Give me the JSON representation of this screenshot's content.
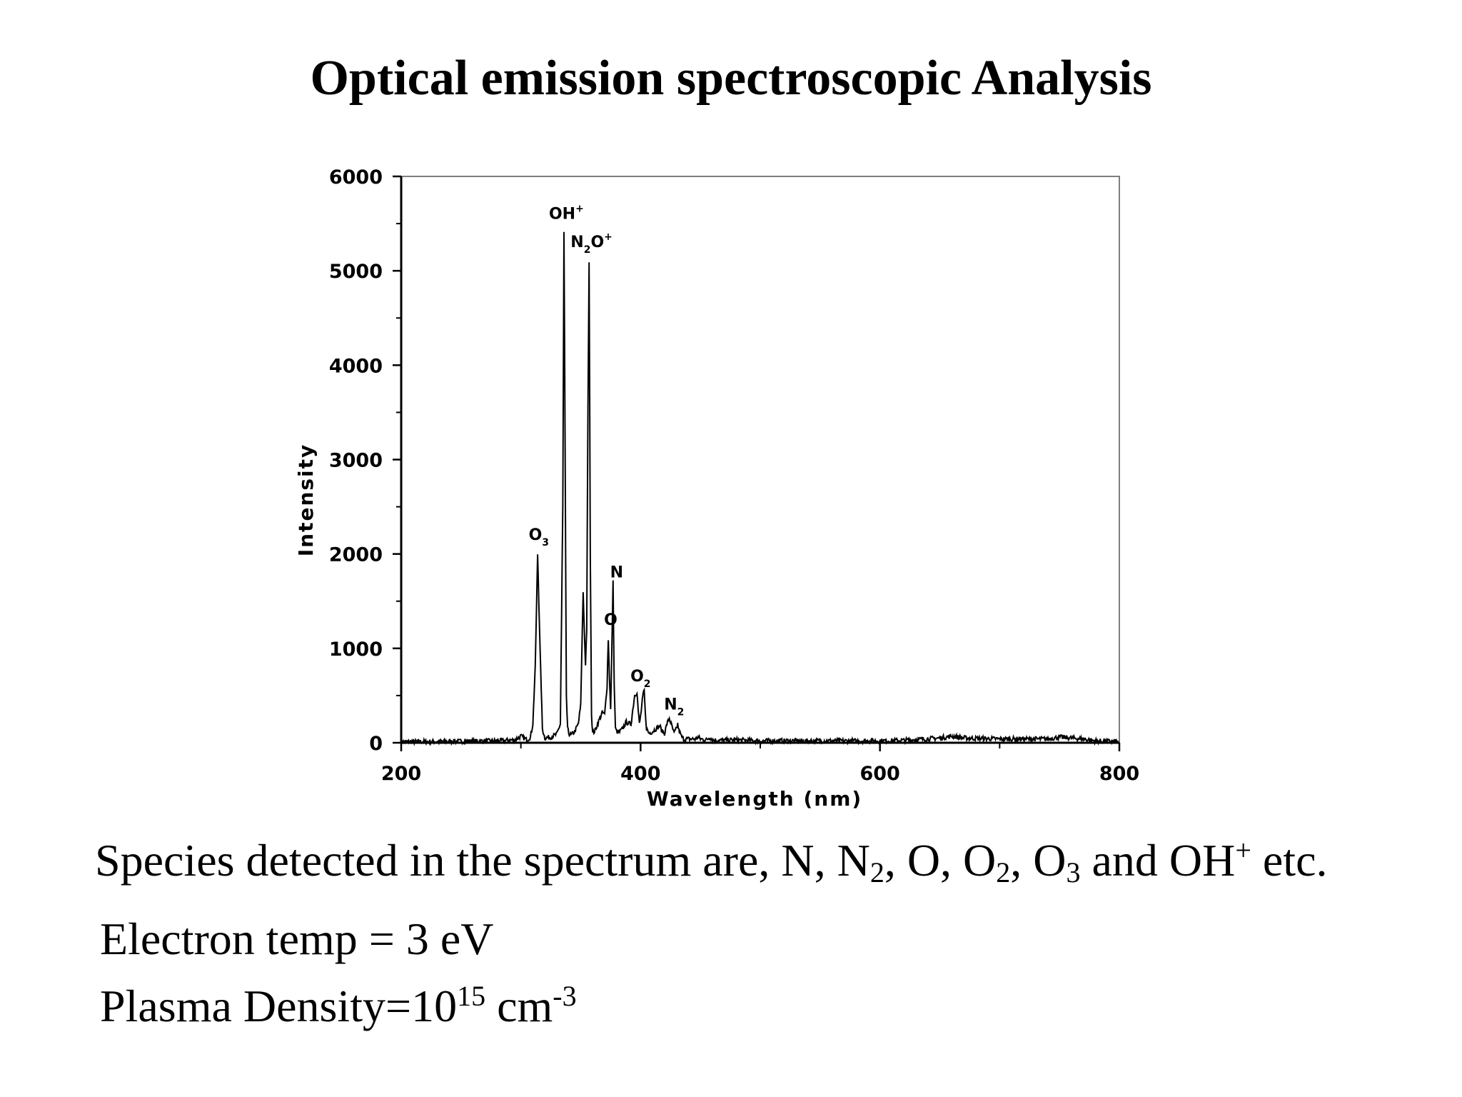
{
  "slide": {
    "title": "Optical emission spectroscopic Analysis",
    "species_line": {
      "prefix": "Species detected in the spectrum are, N, N",
      "n2_sub": "2",
      "mid1": ", O, O",
      "o2_sub": "2",
      "mid2": ", O",
      "o3_sub": "3",
      "mid3": " and OH",
      "oh_sup": "+",
      "suffix": " etc."
    },
    "electron_temp": "Electron temp = 3 eV",
    "plasma_density": {
      "prefix": "Plasma Density=10",
      "exponent": "15",
      "unit": " cm",
      "unit_exponent": "-3"
    }
  },
  "chart_data": {
    "type": "line",
    "title": "",
    "xlabel": "Wavelength (nm)",
    "ylabel": "Intensity",
    "xlim": [
      200,
      800
    ],
    "ylim": [
      0,
      6000
    ],
    "x_ticks": [
      200,
      400,
      600,
      800
    ],
    "x_tick_labels": [
      "200",
      "400",
      "600",
      "800"
    ],
    "y_ticks": [
      0,
      1000,
      2000,
      3000,
      4000,
      5000,
      6000
    ],
    "y_tick_labels": [
      "0",
      "1000",
      "2000",
      "3000",
      "4000",
      "5000",
      "6000"
    ],
    "grid": false,
    "line_color": "#000000",
    "series": [
      {
        "x": [
          200,
          250,
          280,
          295,
          300,
          305,
          308,
          310,
          312,
          314,
          316,
          318,
          320,
          325,
          330,
          333,
          335,
          336,
          337,
          338,
          339,
          340,
          342,
          345,
          348,
          350,
          352,
          353,
          354,
          355,
          356,
          357,
          358,
          359,
          360,
          362,
          365,
          368,
          370,
          372,
          373,
          374,
          375,
          376,
          377,
          378,
          379,
          380,
          382,
          385,
          388,
          390,
          392,
          395,
          397,
          398,
          399,
          400,
          402,
          403,
          404,
          405,
          407,
          410,
          414,
          416,
          418,
          420,
          422,
          424,
          426,
          428,
          430,
          431,
          432,
          434,
          436,
          440,
          446,
          448,
          450,
          455,
          458,
          460,
          465,
          480,
          500,
          550,
          600,
          620,
          650,
          660,
          665,
          670,
          700,
          740,
          750,
          760,
          770,
          780,
          800
        ],
        "y": [
          10,
          15,
          20,
          30,
          70,
          30,
          60,
          200,
          800,
          2000,
          1000,
          150,
          50,
          60,
          90,
          200,
          2500,
          5400,
          3000,
          500,
          150,
          100,
          80,
          120,
          200,
          400,
          1600,
          1200,
          800,
          1200,
          3500,
          5100,
          2000,
          300,
          100,
          130,
          230,
          320,
          300,
          600,
          1100,
          700,
          350,
          1000,
          1700,
          600,
          150,
          120,
          110,
          150,
          220,
          200,
          200,
          500,
          540,
          350,
          200,
          280,
          500,
          550,
          300,
          150,
          100,
          120,
          160,
          180,
          120,
          100,
          200,
          260,
          180,
          100,
          150,
          200,
          130,
          70,
          40,
          40,
          40,
          60,
          40,
          30,
          60,
          30,
          25,
          30,
          20,
          20,
          20,
          25,
          50,
          70,
          60,
          50,
          40,
          40,
          60,
          50,
          40,
          20,
          10
        ]
      }
    ],
    "annotations": [
      {
        "text": "O",
        "sub": "3",
        "x": 315,
        "y": 2150
      },
      {
        "text": "OH",
        "sup": "+",
        "x": 338,
        "y": 5550
      },
      {
        "text": "N",
        "sub": "2",
        "text2": "O",
        "sup": "+",
        "x": 359,
        "y": 5250
      },
      {
        "text": "N",
        "x": 380,
        "y": 1750
      },
      {
        "text": "O",
        "x": 375,
        "y": 1250
      },
      {
        "text": "O",
        "sub": "2",
        "x": 400,
        "y": 650
      },
      {
        "text": "N",
        "sub": "2",
        "x": 428,
        "y": 350
      }
    ]
  }
}
